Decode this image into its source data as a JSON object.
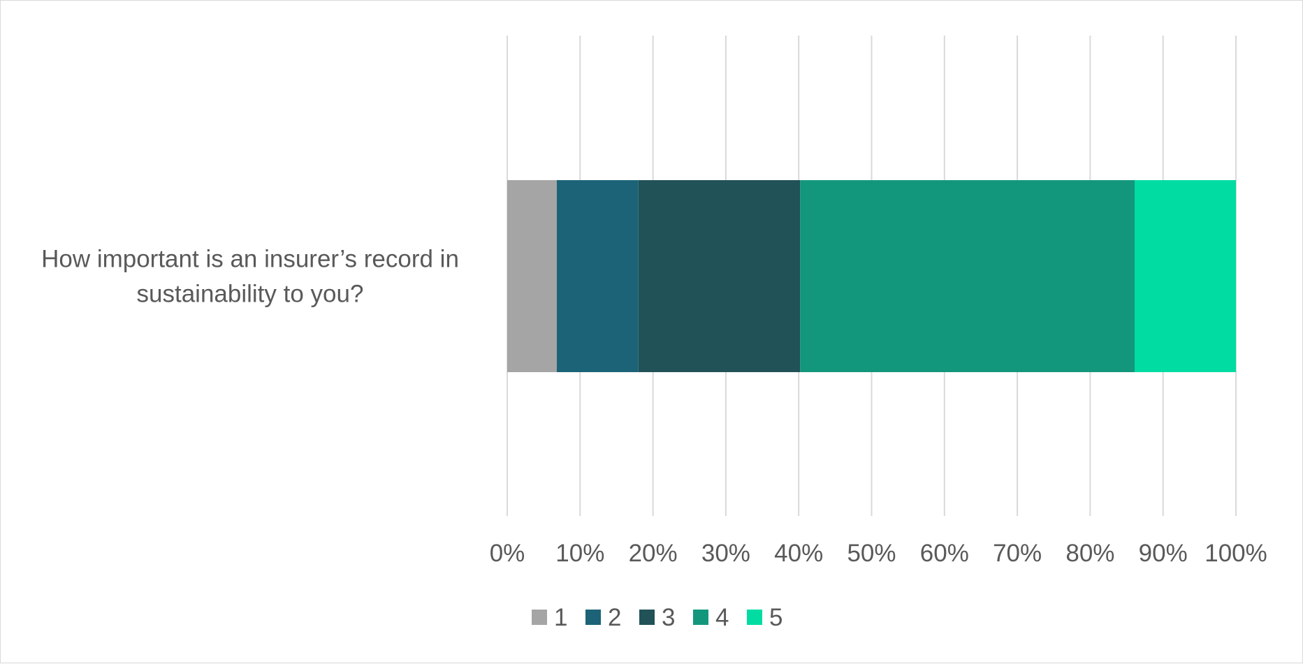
{
  "chart_data": {
    "type": "bar",
    "orientation": "horizontal",
    "stacked": true,
    "percent": true,
    "categories": [
      "How important is an insurer’s record in sustainability to you?"
    ],
    "category_lines": [
      "How important is an insurer’s record in",
      "sustainability to you?"
    ],
    "series": [
      {
        "name": "1",
        "values": [
          6.8
        ],
        "color": "#a5a5a5"
      },
      {
        "name": "2",
        "values": [
          11.2
        ],
        "color": "#1c6378"
      },
      {
        "name": "3",
        "values": [
          22.2
        ],
        "color": "#215257"
      },
      {
        "name": "4",
        "values": [
          45.9
        ],
        "color": "#13977c"
      },
      {
        "name": "5",
        "values": [
          13.9
        ],
        "color": "#00dca2"
      }
    ],
    "xlim": [
      0,
      100
    ],
    "x_ticks": [
      "0%",
      "10%",
      "20%",
      "30%",
      "40%",
      "50%",
      "60%",
      "70%",
      "80%",
      "90%",
      "100%"
    ],
    "grid": "vertical",
    "legend_position": "bottom"
  }
}
